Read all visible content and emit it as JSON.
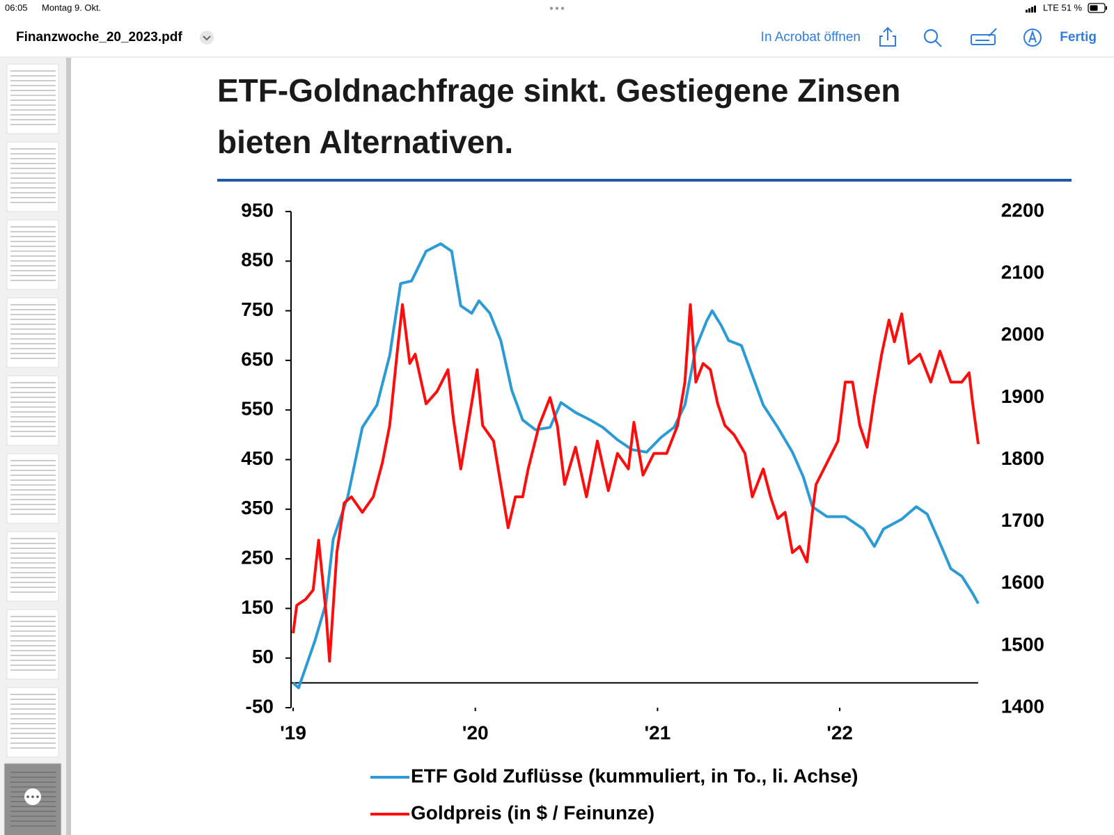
{
  "ui": {
    "time": "06:05",
    "date": "Montag 9. Okt.",
    "status": "LTE 51 %",
    "filename": "Finanzwoche_20_2023.pdf",
    "open_in": "In Acrobat öffnen",
    "done": "Fertig"
  },
  "chart_data": {
    "type": "line",
    "title_lines": [
      "ETF-Goldnachfrage sinkt. Gestiegene Zinsen",
      "bieten Alternativen."
    ],
    "xlim": [
      2019,
      2022.76
    ],
    "xticks": [
      {
        "value": 2019,
        "label": "'19"
      },
      {
        "value": 2020,
        "label": "'20"
      },
      {
        "value": 2021,
        "label": "'21"
      },
      {
        "value": 2022,
        "label": "'22"
      }
    ],
    "ylim": [
      -50,
      950
    ],
    "yticks": [
      -50,
      50,
      150,
      250,
      350,
      450,
      550,
      650,
      750,
      850,
      950
    ],
    "y2lim": [
      1400,
      2200
    ],
    "y2ticks": [
      1400,
      1500,
      1600,
      1700,
      1800,
      1900,
      2000,
      2100,
      2200
    ],
    "series": [
      {
        "name": "ETF Gold Zuflüsse (kummuliert, in To., li. Achse)",
        "color": "#2a9bd6",
        "axis": "y",
        "x": [
          2019.0,
          2019.03,
          2019.12,
          2019.18,
          2019.22,
          2019.3,
          2019.38,
          2019.46,
          2019.53,
          2019.59,
          2019.65,
          2019.73,
          2019.81,
          2019.87,
          2019.92,
          2019.98,
          2020.02,
          2020.08,
          2020.14,
          2020.2,
          2020.26,
          2020.33,
          2020.41,
          2020.47,
          2020.55,
          2020.63,
          2020.7,
          2020.78,
          2020.86,
          2020.94,
          2021.02,
          2021.09,
          2021.15,
          2021.21,
          2021.27,
          2021.3,
          2021.35,
          2021.39,
          2021.46,
          2021.52,
          2021.58,
          2021.66,
          2021.74,
          2021.8,
          2021.85,
          2021.93,
          2022.03,
          2022.13,
          2022.19,
          2022.24,
          2022.34,
          2022.42,
          2022.48,
          2022.54,
          2022.61,
          2022.67,
          2022.73,
          2022.76
        ],
        "values": [
          0,
          -10,
          85,
          160,
          290,
          375,
          515,
          560,
          660,
          805,
          810,
          870,
          885,
          870,
          760,
          745,
          770,
          745,
          690,
          590,
          530,
          510,
          515,
          565,
          545,
          530,
          515,
          490,
          470,
          465,
          495,
          515,
          560,
          675,
          730,
          750,
          720,
          690,
          680,
          620,
          560,
          515,
          465,
          415,
          355,
          335,
          335,
          310,
          275,
          310,
          330,
          355,
          340,
          290,
          230,
          215,
          180,
          160
        ]
      },
      {
        "name": "Goldpreis (in $ / Feinunze)",
        "color": "#ff0d0d",
        "axis": "y2",
        "x": [
          2019.0,
          2019.02,
          2019.07,
          2019.11,
          2019.14,
          2019.18,
          2019.2,
          2019.24,
          2019.28,
          2019.32,
          2019.38,
          2019.44,
          2019.49,
          2019.53,
          2019.57,
          2019.6,
          2019.64,
          2019.67,
          2019.73,
          2019.79,
          2019.85,
          2019.88,
          2019.92,
          2019.96,
          2020.01,
          2020.04,
          2020.1,
          2020.14,
          2020.18,
          2020.22,
          2020.26,
          2020.29,
          2020.35,
          2020.41,
          2020.45,
          2020.49,
          2020.55,
          2020.61,
          2020.67,
          2020.73,
          2020.78,
          2020.84,
          2020.87,
          2020.92,
          2020.98,
          2021.05,
          2021.11,
          2021.15,
          2021.18,
          2021.21,
          2021.25,
          2021.29,
          2021.33,
          2021.37,
          2021.42,
          2021.48,
          2021.52,
          2021.58,
          2021.62,
          2021.66,
          2021.7,
          2021.74,
          2021.78,
          2021.82,
          2021.85,
          2021.87,
          2021.93,
          2021.99,
          2022.03,
          2022.07,
          2022.11,
          2022.15,
          2022.19,
          2022.23,
          2022.27,
          2022.3,
          2022.34,
          2022.38,
          2022.44,
          2022.5,
          2022.55,
          2022.61,
          2022.67,
          2022.71,
          2022.73,
          2022.76
        ],
        "values": [
          1520,
          1565,
          1575,
          1590,
          1670,
          1555,
          1475,
          1650,
          1730,
          1740,
          1715,
          1740,
          1795,
          1855,
          1970,
          2050,
          1955,
          1970,
          1890,
          1910,
          1945,
          1865,
          1785,
          1855,
          1945,
          1855,
          1830,
          1760,
          1690,
          1740,
          1740,
          1785,
          1855,
          1900,
          1855,
          1760,
          1820,
          1740,
          1830,
          1750,
          1810,
          1785,
          1860,
          1775,
          1810,
          1810,
          1855,
          1925,
          2050,
          1925,
          1955,
          1945,
          1890,
          1855,
          1840,
          1810,
          1740,
          1785,
          1740,
          1705,
          1715,
          1650,
          1660,
          1635,
          1715,
          1760,
          1795,
          1830,
          1925,
          1925,
          1855,
          1820,
          1900,
          1970,
          2025,
          1990,
          2035,
          1955,
          1970,
          1925,
          1975,
          1925,
          1925,
          1940,
          1890,
          1825
        ]
      }
    ]
  }
}
